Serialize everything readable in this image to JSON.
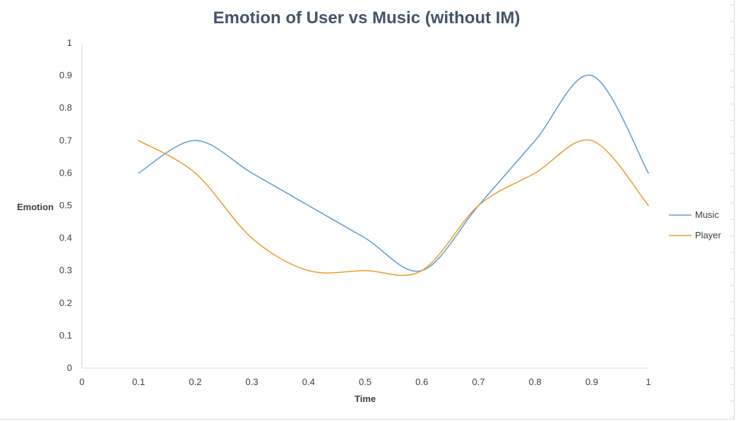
{
  "chart_data": {
    "type": "line",
    "title": "Emotion of User vs Music (without IM)",
    "xlabel": "Time",
    "ylabel": "Emotion",
    "x": [
      0.1,
      0.2,
      0.3,
      0.4,
      0.5,
      0.6,
      0.7,
      0.8,
      0.9,
      1.0
    ],
    "xticks": [
      "0",
      "0.1",
      "0.2",
      "0.3",
      "0.4",
      "0.5",
      "0.6",
      "0.7",
      "0.8",
      "0.9",
      "1"
    ],
    "yticks": [
      "0",
      "0.1",
      "0.2",
      "0.3",
      "0.4",
      "0.5",
      "0.6",
      "0.7",
      "0.8",
      "0.9",
      "1"
    ],
    "xlim": [
      0,
      1
    ],
    "ylim": [
      0,
      1
    ],
    "smooth": true,
    "grid": false,
    "legend_position": "right",
    "series": [
      {
        "name": "Music",
        "color": "#5b9bd5",
        "values": [
          0.6,
          0.7,
          0.6,
          0.5,
          0.4,
          0.3,
          0.5,
          0.7,
          0.9,
          0.6
        ]
      },
      {
        "name": "Player",
        "color": "#ed9b2b",
        "values": [
          0.7,
          0.6,
          0.4,
          0.3,
          0.3,
          0.3,
          0.5,
          0.6,
          0.7,
          0.5
        ]
      }
    ]
  }
}
